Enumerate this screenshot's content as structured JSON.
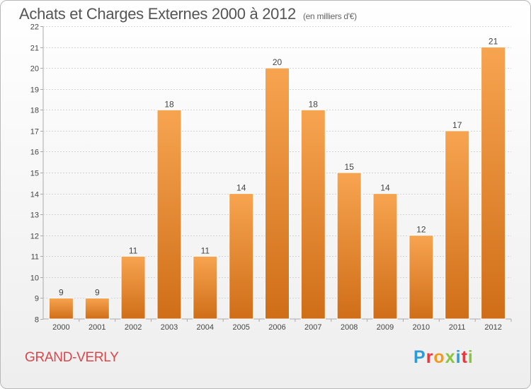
{
  "header": {
    "title": "Achats et Charges Externes 2000 à 2012",
    "subtitle": "(en milliers d'€)"
  },
  "footer": {
    "commune": "GRAND-VERLY",
    "logo_text": "Proxiti"
  },
  "colors": {
    "bar_light": "#f7a450",
    "bar_dark": "#d06e18",
    "commune": "#d9464b",
    "logo_letters": [
      "#2e9bd6",
      "#e8383d",
      "#f29a1f",
      "#8ac53f",
      "#2e9bd6",
      "#e8383d",
      "#8ac53f"
    ]
  },
  "chart_data": {
    "type": "bar",
    "categories": [
      "2000",
      "2001",
      "2002",
      "2003",
      "2004",
      "2005",
      "2006",
      "2007",
      "2008",
      "2009",
      "2010",
      "2011",
      "2012"
    ],
    "values": [
      9,
      9,
      11,
      18,
      11,
      14,
      20,
      18,
      15,
      14,
      12,
      17,
      21
    ],
    "ylim": [
      8,
      22
    ],
    "yticks": [
      8,
      9,
      10,
      11,
      12,
      13,
      14,
      15,
      16,
      17,
      18,
      19,
      20,
      21,
      22
    ],
    "grid": true,
    "data_labels": true
  }
}
